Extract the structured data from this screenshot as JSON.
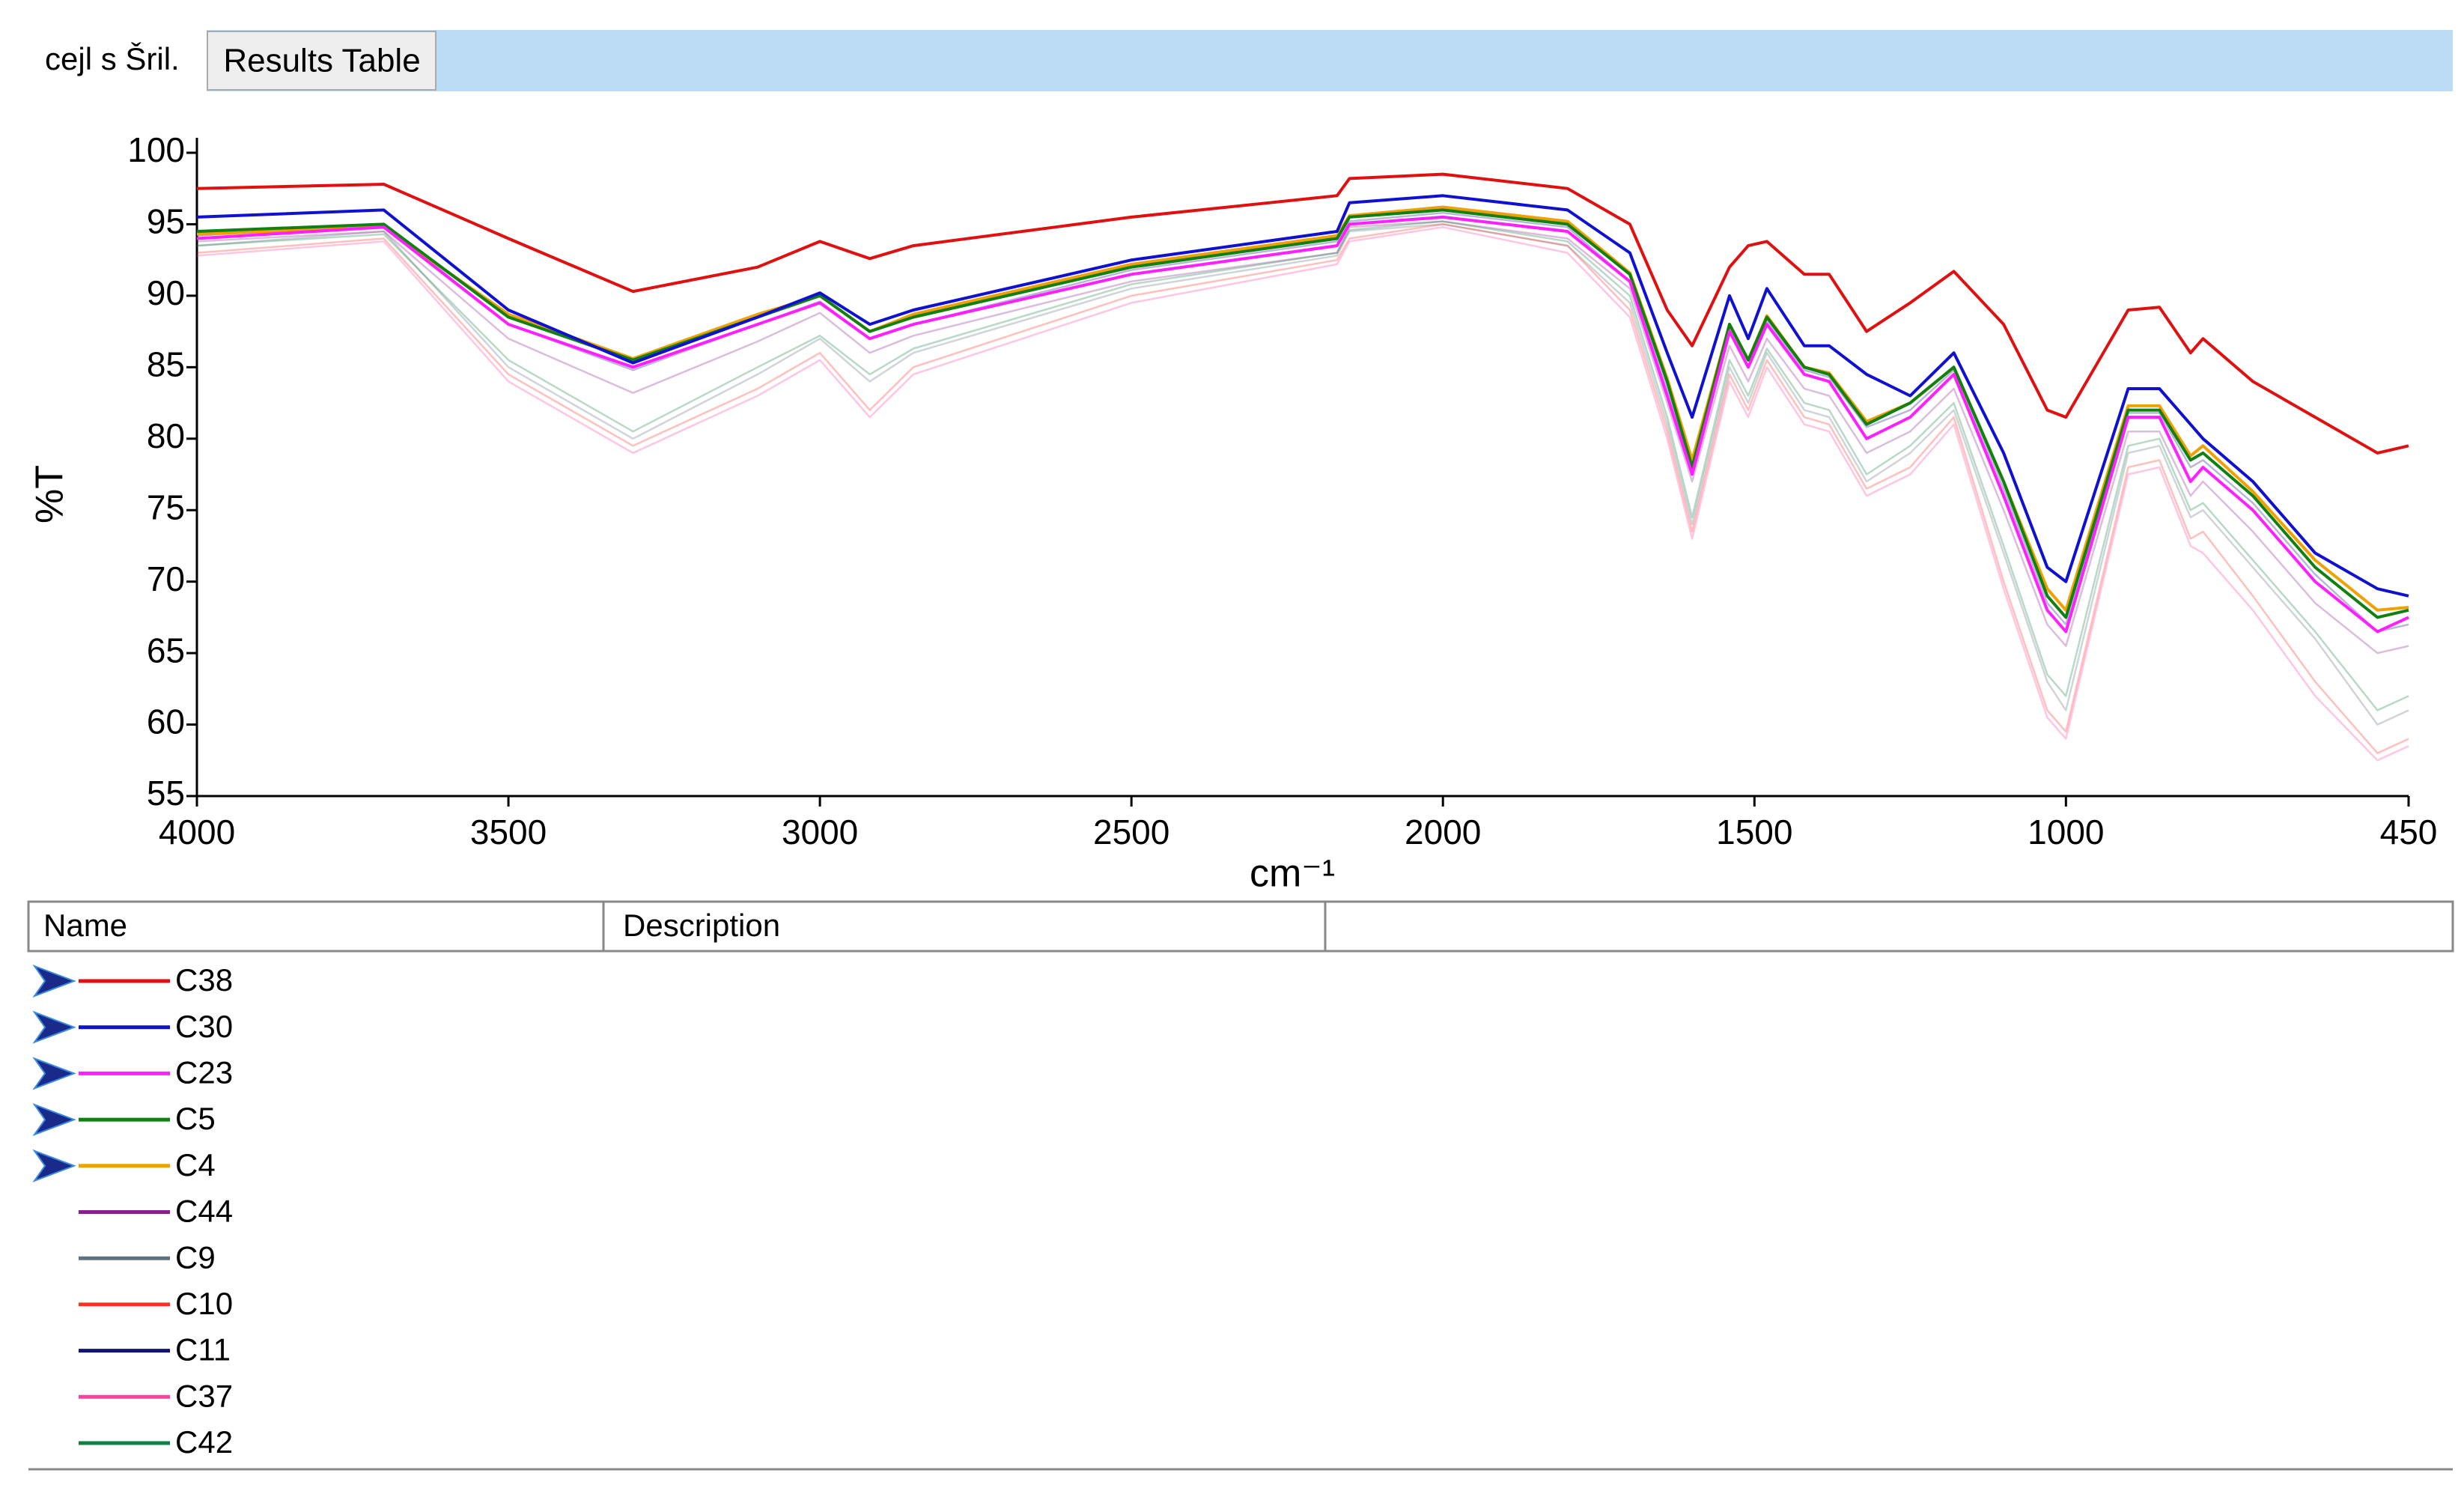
{
  "header": {
    "label": "cejl s Šril.",
    "tab": "Results Table"
  },
  "chart_data": {
    "type": "line",
    "ylabel": "%T",
    "xlabel": "cm⁻¹",
    "xlim": [
      4000,
      450
    ],
    "xticks": [
      4000,
      3500,
      3000,
      2500,
      2000,
      1500,
      1000,
      450
    ],
    "ylim": [
      55,
      100
    ],
    "yticks": [
      55,
      60,
      65,
      70,
      75,
      80,
      85,
      90,
      95,
      100
    ],
    "x": [
      4000,
      3700,
      3500,
      3300,
      3100,
      3000,
      2920,
      2850,
      2500,
      2170,
      2150,
      2000,
      1800,
      1700,
      1640,
      1600,
      1540,
      1510,
      1480,
      1420,
      1380,
      1320,
      1250,
      1180,
      1100,
      1030,
      1000,
      900,
      850,
      800,
      780,
      700,
      600,
      500,
      450
    ],
    "series": [
      {
        "name": "C38",
        "color": "#e01010",
        "selected": true,
        "values": [
          97.5,
          97.8,
          94,
          90.3,
          92,
          93.8,
          92.6,
          93.5,
          95.5,
          97,
          98.2,
          98.5,
          97.5,
          95,
          89,
          86.5,
          92,
          93.5,
          93.8,
          91.5,
          91.5,
          87.5,
          89.5,
          91.7,
          88,
          82,
          81.5,
          89,
          89.2,
          86,
          87,
          84,
          81.5,
          79,
          79.5
        ]
      },
      {
        "name": "C30",
        "color": "#1010d0",
        "selected": true,
        "values": [
          95.5,
          96,
          89,
          85.3,
          88.5,
          90.2,
          88,
          89,
          92.5,
          94.5,
          96.5,
          97,
          96,
          93,
          86,
          81.5,
          90,
          87,
          90.5,
          86.5,
          86.5,
          84.5,
          83,
          86,
          79,
          71,
          70,
          83.5,
          83.5,
          81,
          80,
          77,
          72,
          69.5,
          69
        ]
      },
      {
        "name": "C23",
        "color": "#ff20ff",
        "selected": true,
        "values": [
          94,
          94.8,
          88,
          85,
          88,
          89.5,
          87,
          88,
          91.5,
          93.5,
          95,
          95.5,
          94.5,
          91,
          83,
          77.5,
          87.5,
          85,
          88,
          84.5,
          84,
          80,
          81.5,
          84.5,
          76,
          68,
          66.5,
          81.5,
          81.5,
          77,
          78,
          75,
          70,
          66.5,
          67.5
        ]
      },
      {
        "name": "C5",
        "color": "#108010",
        "selected": true,
        "values": [
          94.5,
          95,
          88.5,
          85.5,
          88.5,
          90,
          87.5,
          88.5,
          92,
          94,
          95.5,
          96,
          95,
          91.5,
          84,
          78,
          88,
          85.5,
          88.5,
          85,
          84.5,
          81,
          82.5,
          85,
          77,
          69,
          67.5,
          82,
          82,
          78.5,
          79,
          76,
          71,
          67.5,
          68
        ]
      },
      {
        "name": "C4",
        "color": "#f0a000",
        "selected": true,
        "values": [
          94.3,
          94.8,
          88.7,
          85.6,
          88.7,
          90,
          87.5,
          88.7,
          92.2,
          94.2,
          95.6,
          96.2,
          95.2,
          91.6,
          84.2,
          78.5,
          88,
          85.5,
          88.6,
          85,
          84.6,
          81.2,
          82.5,
          85,
          77,
          69.5,
          68,
          82.3,
          82.3,
          78.8,
          79.5,
          76.3,
          71.5,
          68,
          68.2
        ]
      },
      {
        "name": "C44",
        "color": "#8a2090",
        "selected": false,
        "values": [
          93.8,
          94.5,
          87,
          83.2,
          86.8,
          88.8,
          86,
          87.2,
          91,
          93,
          94.8,
          95.2,
          94,
          90.5,
          82.5,
          77,
          86.5,
          84,
          87,
          83.5,
          83,
          79,
          80.5,
          83.5,
          75,
          67,
          65.5,
          80.5,
          80.5,
          76,
          77,
          73.5,
          68.5,
          65,
          65.5
        ]
      },
      {
        "name": "C9",
        "color": "#607080",
        "selected": false,
        "values": [
          93.5,
          94.5,
          85,
          80,
          84.5,
          87,
          84,
          86,
          90.5,
          92.8,
          94.5,
          95,
          93.5,
          89.5,
          81,
          74,
          85,
          82.5,
          86,
          82,
          81.5,
          77,
          79,
          82,
          72,
          63,
          61,
          79,
          79.5,
          74.5,
          75,
          71,
          66,
          60,
          61
        ]
      },
      {
        "name": "C10",
        "color": "#ff3020",
        "selected": false,
        "values": [
          93,
          94,
          84.5,
          79.5,
          83.5,
          86,
          82,
          85,
          90,
          92.5,
          94,
          95,
          93.5,
          89,
          80.5,
          73.5,
          84.5,
          82,
          85.5,
          81.5,
          81,
          76.5,
          78,
          81.5,
          70,
          61,
          59.5,
          78,
          78.5,
          73,
          73.5,
          69,
          63,
          58,
          59
        ]
      },
      {
        "name": "C11",
        "color": "#101080",
        "selected": false,
        "values": [
          94.2,
          95,
          88,
          84.8,
          88,
          89.6,
          87,
          88,
          91.8,
          93.8,
          95.2,
          95.8,
          94.8,
          91,
          83.5,
          78,
          87.8,
          85,
          88.2,
          84.8,
          84.3,
          80.8,
          82,
          84.8,
          76.5,
          68.5,
          67,
          81.8,
          81.8,
          78,
          78.5,
          75.5,
          70.5,
          66.5,
          67
        ]
      },
      {
        "name": "C37",
        "color": "#ff40a0",
        "selected": false,
        "values": [
          92.8,
          93.8,
          84,
          79,
          83,
          85.5,
          81.5,
          84.5,
          89.5,
          92.2,
          93.8,
          94.8,
          93,
          88.5,
          80,
          73,
          84,
          81.5,
          85,
          81,
          80.5,
          76,
          77.5,
          81,
          69.5,
          60.5,
          59,
          77.5,
          78,
          72.5,
          72,
          68,
          62,
          57.5,
          58.5
        ]
      },
      {
        "name": "C42",
        "color": "#108040",
        "selected": false,
        "values": [
          93.5,
          94.3,
          85.5,
          80.5,
          85,
          87.2,
          84.5,
          86.3,
          90.8,
          93,
          94.6,
          95.2,
          93.8,
          90,
          81.5,
          74.5,
          85.5,
          83,
          86.3,
          82.5,
          82,
          77.5,
          79.5,
          82.5,
          72.5,
          63.5,
          62,
          79.5,
          80,
          75,
          75.5,
          71.5,
          66.5,
          61,
          62
        ]
      }
    ]
  },
  "table": {
    "columns": [
      "Name",
      "Description"
    ]
  }
}
